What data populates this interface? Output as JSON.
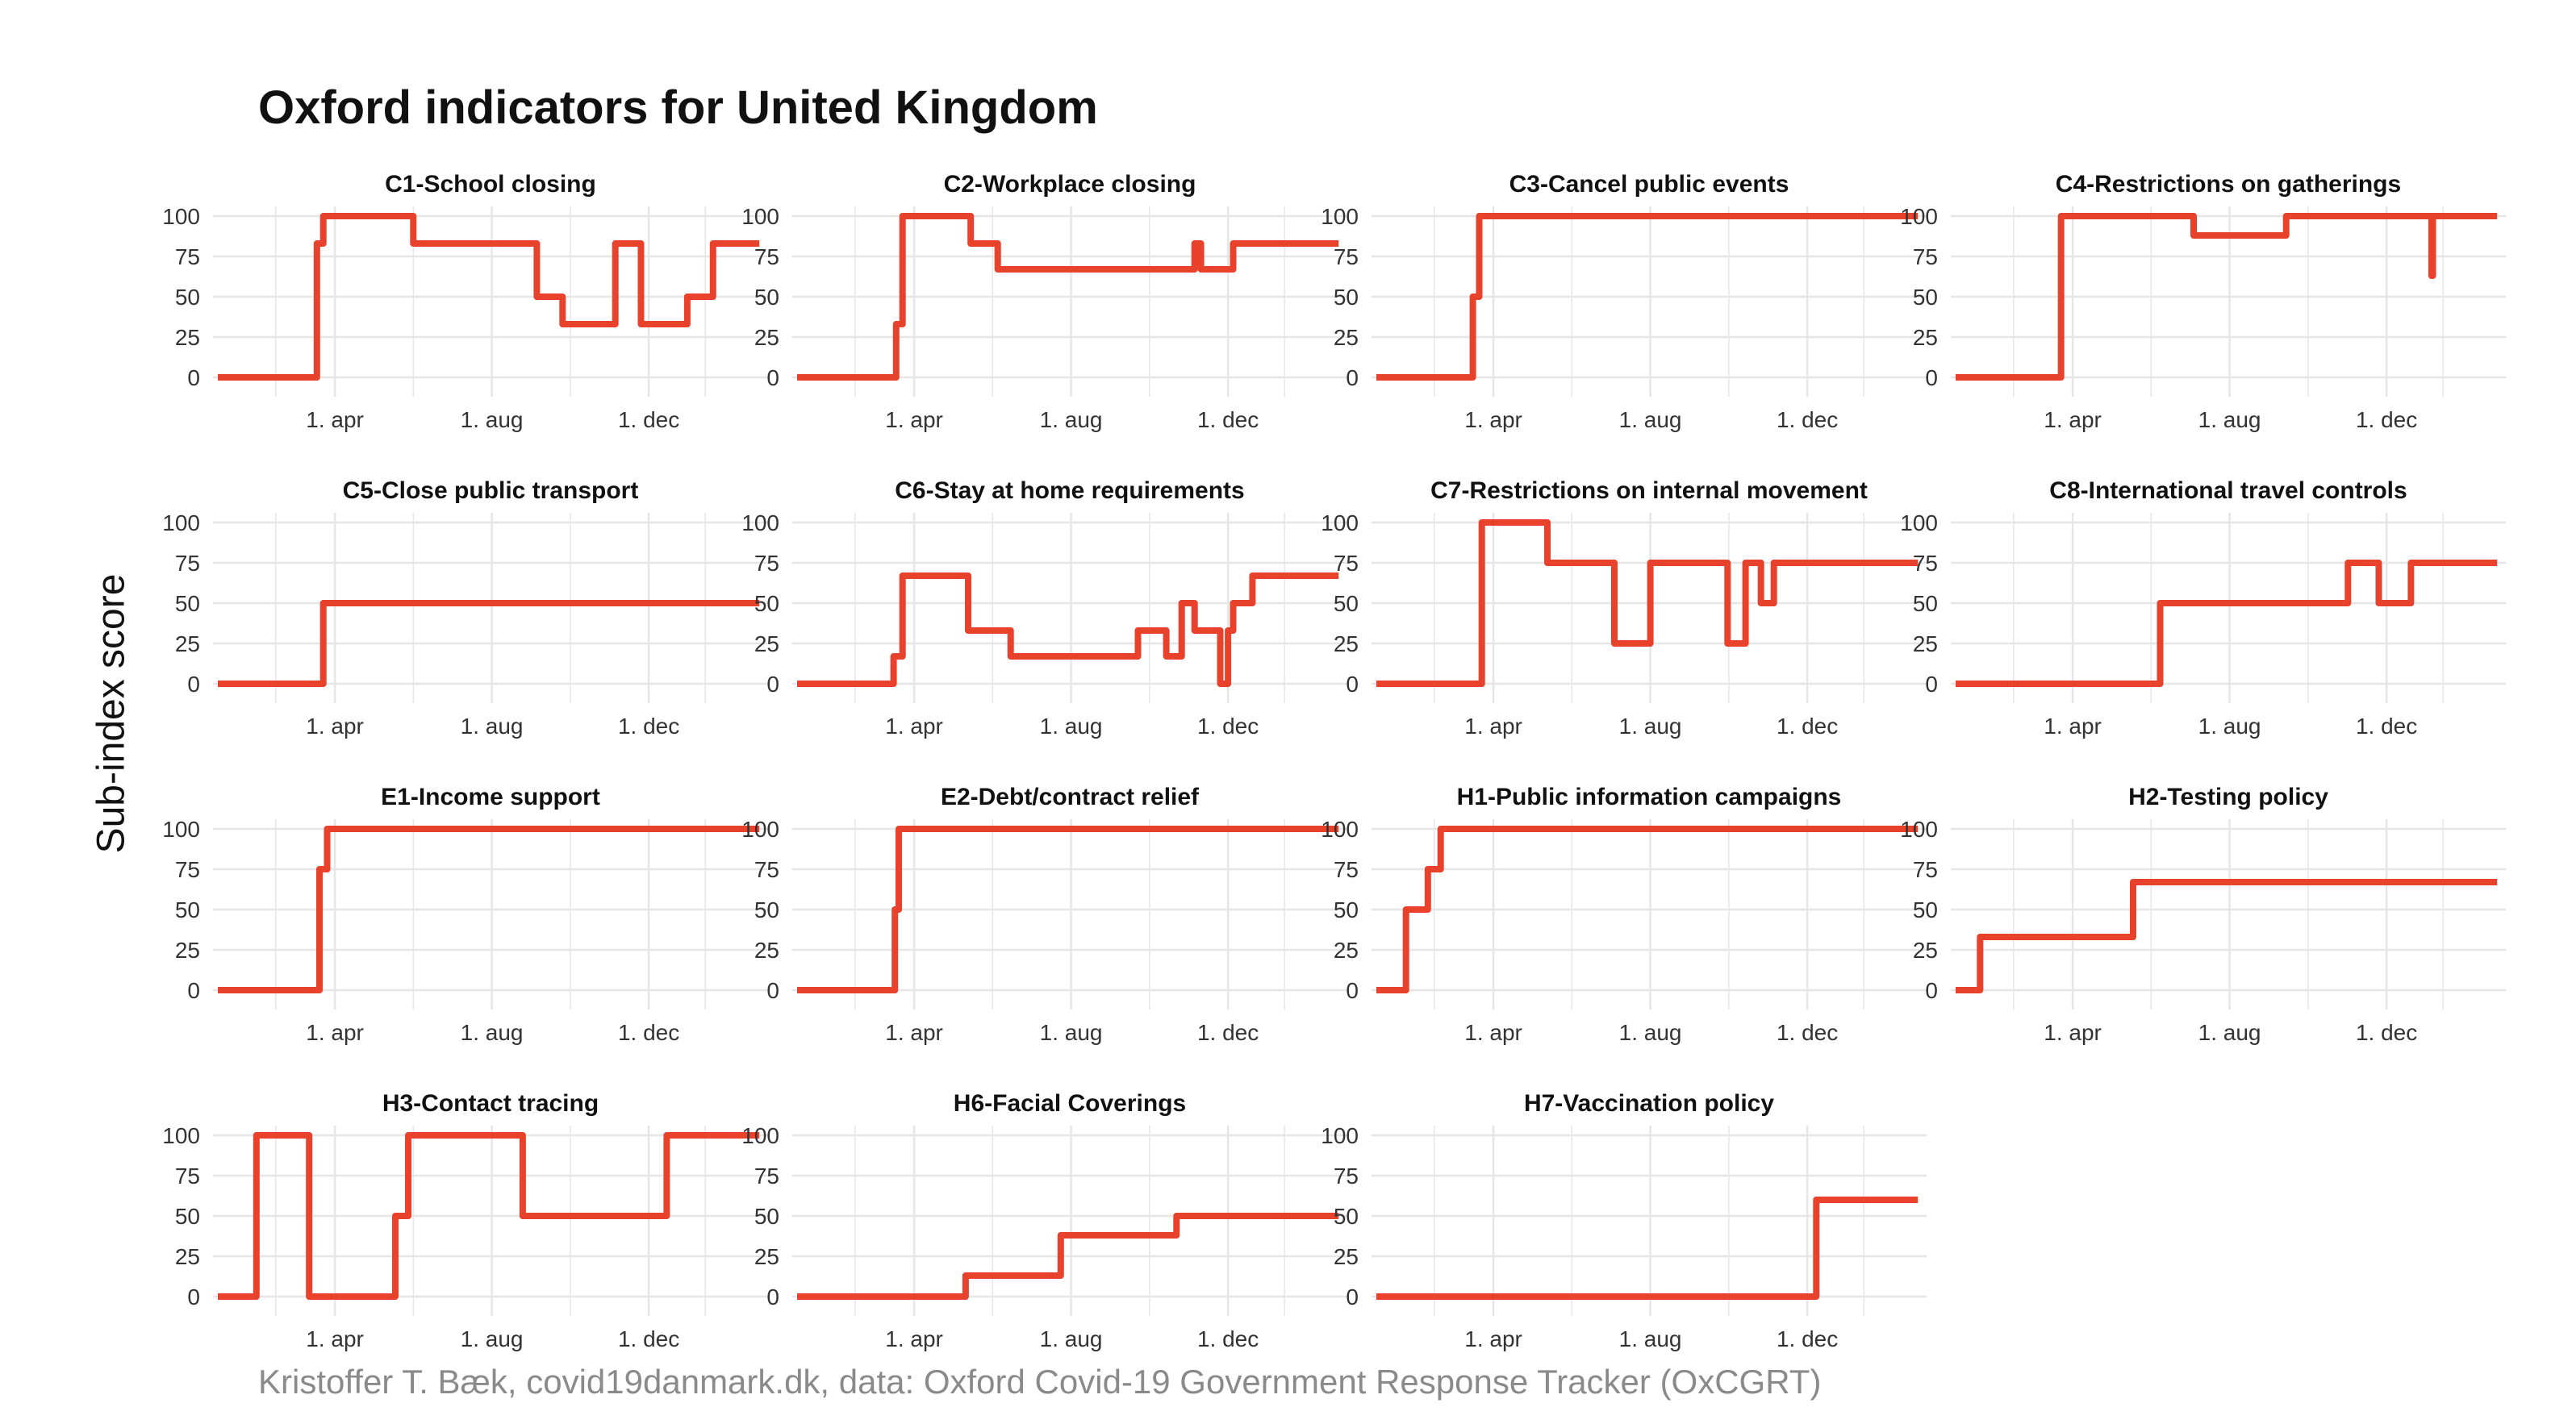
{
  "title": "Oxford indicators for United Kingdom",
  "caption": "Kristoffer T. Bæk, covid19danmark.dk, data: Oxford Covid-19 Government Response Tracker (OxCGRT)",
  "colors": {
    "line": "#E8412C",
    "grid": "#E6E6E6",
    "text": "#111111",
    "caption": "#8A8A8A"
  },
  "chart_data": {
    "type": "line",
    "layout": "facet-grid 4x4",
    "ylabel": "Sub-index score",
    "xlabel": "",
    "x_ticks": [
      {
        "date": "2020-04-01",
        "label": "1. apr"
      },
      {
        "date": "2020-08-01",
        "label": "1. aug"
      },
      {
        "date": "2020-12-01",
        "label": "1. dec"
      }
    ],
    "y_ticks": [
      0,
      25,
      50,
      75,
      100
    ],
    "xlim": [
      "2020-01-01",
      "2021-02-28"
    ],
    "ylim": [
      0,
      100
    ],
    "grid": true,
    "panels": [
      {
        "title": "C1-School closing",
        "steps": [
          [
            "2020-01-01",
            0
          ],
          [
            "2020-03-18",
            83
          ],
          [
            "2020-03-23",
            100
          ],
          [
            "2020-06-01",
            83
          ],
          [
            "2020-09-05",
            50
          ],
          [
            "2020-09-25",
            33
          ],
          [
            "2020-11-05",
            83
          ],
          [
            "2020-11-25",
            33
          ],
          [
            "2020-12-31",
            50
          ],
          [
            "2021-01-20",
            83
          ],
          [
            "2021-02-25",
            83
          ]
        ]
      },
      {
        "title": "C2-Workplace closing",
        "steps": [
          [
            "2020-01-01",
            0
          ],
          [
            "2020-03-18",
            33
          ],
          [
            "2020-03-23",
            100
          ],
          [
            "2020-05-15",
            83
          ],
          [
            "2020-06-05",
            67
          ],
          [
            "2020-11-05",
            83
          ],
          [
            "2020-11-10",
            67
          ],
          [
            "2020-12-05",
            83
          ],
          [
            "2021-02-25",
            83
          ]
        ]
      },
      {
        "title": "C3-Cancel public events",
        "steps": [
          [
            "2020-01-01",
            0
          ],
          [
            "2020-03-16",
            50
          ],
          [
            "2020-03-21",
            100
          ],
          [
            "2021-02-25",
            100
          ]
        ]
      },
      {
        "title": "C4-Restrictions on gatherings",
        "steps": [
          [
            "2020-01-01",
            0
          ],
          [
            "2020-03-23",
            100
          ],
          [
            "2020-07-04",
            88
          ],
          [
            "2020-09-14",
            100
          ],
          [
            "2021-01-05",
            63
          ],
          [
            "2021-01-06",
            100
          ],
          [
            "2021-02-25",
            100
          ]
        ]
      },
      {
        "title": "C5-Close public transport",
        "steps": [
          [
            "2020-01-01",
            0
          ],
          [
            "2020-03-23",
            50
          ],
          [
            "2021-02-25",
            50
          ]
        ]
      },
      {
        "title": "C6-Stay at home requirements",
        "steps": [
          [
            "2020-01-01",
            0
          ],
          [
            "2020-03-16",
            17
          ],
          [
            "2020-03-23",
            67
          ],
          [
            "2020-05-13",
            33
          ],
          [
            "2020-06-15",
            17
          ],
          [
            "2020-09-22",
            33
          ],
          [
            "2020-10-14",
            17
          ],
          [
            "2020-10-26",
            50
          ],
          [
            "2020-11-05",
            33
          ],
          [
            "2020-11-25",
            0
          ],
          [
            "2020-12-01",
            33
          ],
          [
            "2020-12-05",
            50
          ],
          [
            "2020-12-20",
            67
          ],
          [
            "2021-02-25",
            67
          ]
        ]
      },
      {
        "title": "C7-Restrictions on internal movement",
        "steps": [
          [
            "2020-01-01",
            0
          ],
          [
            "2020-03-23",
            100
          ],
          [
            "2020-05-13",
            75
          ],
          [
            "2020-07-04",
            25
          ],
          [
            "2020-08-01",
            75
          ],
          [
            "2020-09-30",
            25
          ],
          [
            "2020-10-14",
            75
          ],
          [
            "2020-10-26",
            50
          ],
          [
            "2020-11-05",
            75
          ],
          [
            "2021-02-25",
            75
          ]
        ]
      },
      {
        "title": "C8-International travel controls",
        "steps": [
          [
            "2020-01-01",
            0
          ],
          [
            "2020-06-08",
            50
          ],
          [
            "2020-11-01",
            75
          ],
          [
            "2020-11-25",
            50
          ],
          [
            "2020-12-20",
            75
          ],
          [
            "2021-02-25",
            75
          ]
        ]
      },
      {
        "title": "E1-Income support",
        "steps": [
          [
            "2020-01-01",
            0
          ],
          [
            "2020-03-20",
            75
          ],
          [
            "2020-03-26",
            100
          ],
          [
            "2021-02-25",
            100
          ]
        ]
      },
      {
        "title": "E2-Debt/contract relief",
        "steps": [
          [
            "2020-01-01",
            0
          ],
          [
            "2020-03-17",
            50
          ],
          [
            "2020-03-20",
            100
          ],
          [
            "2021-02-25",
            100
          ]
        ]
      },
      {
        "title": "H1-Public information campaigns",
        "steps": [
          [
            "2020-01-01",
            0
          ],
          [
            "2020-01-24",
            50
          ],
          [
            "2020-02-10",
            75
          ],
          [
            "2020-02-20",
            100
          ],
          [
            "2021-02-25",
            100
          ]
        ]
      },
      {
        "title": "H2-Testing policy",
        "steps": [
          [
            "2020-01-01",
            0
          ],
          [
            "2020-01-20",
            33
          ],
          [
            "2020-05-18",
            67
          ],
          [
            "2021-02-25",
            67
          ]
        ]
      },
      {
        "title": "H3-Contact tracing",
        "steps": [
          [
            "2020-01-01",
            0
          ],
          [
            "2020-01-31",
            100
          ],
          [
            "2020-03-12",
            0
          ],
          [
            "2020-05-18",
            50
          ],
          [
            "2020-05-28",
            100
          ],
          [
            "2020-08-25",
            50
          ],
          [
            "2020-12-15",
            100
          ],
          [
            "2021-02-25",
            100
          ]
        ]
      },
      {
        "title": "H6-Facial Coverings",
        "steps": [
          [
            "2020-01-01",
            0
          ],
          [
            "2020-05-11",
            13
          ],
          [
            "2020-07-24",
            38
          ],
          [
            "2020-10-22",
            50
          ],
          [
            "2021-02-25",
            50
          ]
        ]
      },
      {
        "title": "H7-Vaccination policy",
        "steps": [
          [
            "2020-01-01",
            0
          ],
          [
            "2020-12-08",
            60
          ],
          [
            "2021-02-25",
            60
          ]
        ]
      }
    ]
  }
}
